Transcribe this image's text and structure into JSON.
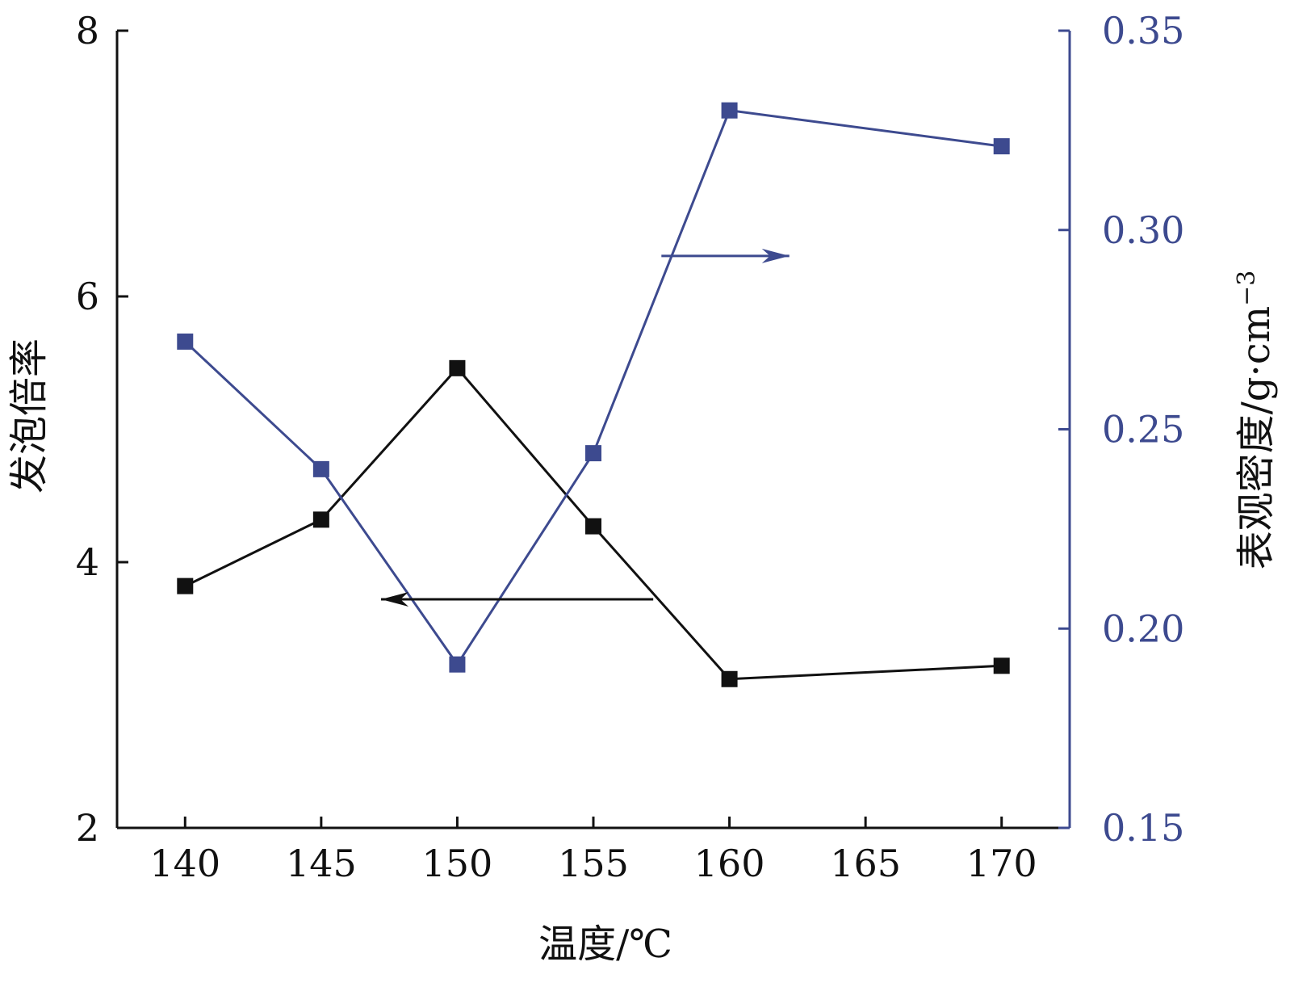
{
  "colors": {
    "left_series": "#111111",
    "right_series": "#3d4a8f"
  },
  "chart_data": {
    "type": "line",
    "title": "",
    "xlabel": "温度/℃",
    "ylabel_left": "发泡倍率",
    "ylabel_right": "表观密度/g·cm",
    "ylabel_right_superscript": "−3",
    "xlim": [
      137.5,
      172.5
    ],
    "ylim_left": [
      2,
      8
    ],
    "ylim_right": [
      0.15,
      0.35
    ],
    "x_ticks": [
      140,
      145,
      150,
      155,
      160,
      165,
      170
    ],
    "y_left_ticks": [
      "2",
      "4",
      "6",
      "8"
    ],
    "y_right_ticks": [
      "0.15",
      "0.20",
      "0.25",
      "0.30",
      "0.35"
    ],
    "grid": false,
    "legend": "none",
    "series": [
      {
        "axis": "left",
        "marker": "square",
        "x": [
          140,
          145,
          150,
          155,
          160,
          170
        ],
        "y": [
          3.82,
          4.32,
          5.46,
          4.27,
          3.12,
          3.22
        ]
      },
      {
        "axis": "right",
        "marker": "square",
        "x": [
          140,
          145,
          150,
          155,
          160,
          170
        ],
        "y": [
          0.272,
          0.24,
          0.191,
          0.244,
          0.33,
          0.321
        ]
      }
    ],
    "annotations": [
      {
        "type": "arrow",
        "direction": "right",
        "axis": "right",
        "points_to": "right-axis-series"
      },
      {
        "type": "arrow",
        "direction": "left",
        "axis": "left",
        "points_to": "left-axis-series"
      }
    ]
  }
}
